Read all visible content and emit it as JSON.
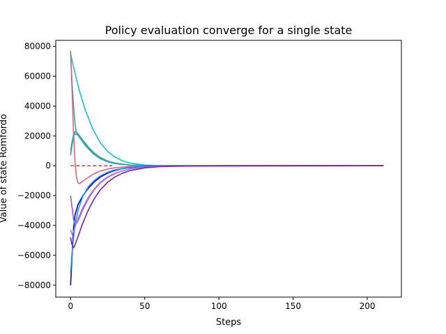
{
  "chart_data": {
    "type": "line",
    "title": "Policy evaluation converge for a single state",
    "xlabel": "Steps",
    "ylabel": "Value of state Romfordo",
    "xlim": [
      -10,
      223
    ],
    "ylim": [
      -88000,
      84000
    ],
    "xticks": [
      0,
      50,
      100,
      150,
      200
    ],
    "yticks": [
      80000,
      60000,
      40000,
      20000,
      0,
      -20000,
      -40000,
      -60000,
      -80000
    ],
    "ytick_labels": [
      "80000",
      "60000",
      "40000",
      "20000",
      "0",
      "−20000",
      "−40000",
      "−60000",
      "−80000"
    ],
    "grid": false,
    "legend": null,
    "reference_line": {
      "y": 0,
      "x": [
        0,
        28
      ],
      "color": "#ff2020",
      "style": "dashed"
    },
    "series": [
      {
        "color": "#17becf",
        "points": [
          [
            0,
            75000
          ],
          [
            3,
            62000
          ],
          [
            6,
            50000
          ],
          [
            10,
            37000
          ],
          [
            15,
            24500
          ],
          [
            20,
            15500
          ],
          [
            25,
            9500
          ],
          [
            30,
            5800
          ],
          [
            35,
            3300
          ],
          [
            40,
            1800
          ],
          [
            50,
            500
          ],
          [
            60,
            150
          ],
          [
            80,
            20
          ],
          [
            120,
            0
          ],
          [
            211,
            0
          ]
        ]
      },
      {
        "color": "#4d9da8",
        "points": [
          [
            0,
            76000
          ],
          [
            1,
            55000
          ],
          [
            2,
            40000
          ],
          [
            3,
            28000
          ],
          [
            4,
            22000
          ],
          [
            6,
            19000
          ],
          [
            10,
            13500
          ],
          [
            15,
            8200
          ],
          [
            20,
            4700
          ],
          [
            25,
            2600
          ],
          [
            30,
            1400
          ],
          [
            40,
            400
          ],
          [
            60,
            30
          ],
          [
            211,
            0
          ]
        ]
      },
      {
        "color": "#2eaab8",
        "points": [
          [
            0,
            10000
          ],
          [
            1,
            16000
          ],
          [
            2,
            21000
          ],
          [
            3,
            23000
          ],
          [
            5,
            21500
          ],
          [
            8,
            17500
          ],
          [
            12,
            12500
          ],
          [
            16,
            8500
          ],
          [
            20,
            5600
          ],
          [
            25,
            3200
          ],
          [
            30,
            1800
          ],
          [
            40,
            500
          ],
          [
            60,
            30
          ],
          [
            211,
            0
          ]
        ]
      },
      {
        "color": "#3aa0a0",
        "points": [
          [
            0,
            7000
          ],
          [
            1,
            14000
          ],
          [
            2,
            19500
          ],
          [
            3,
            21500
          ],
          [
            5,
            20500
          ],
          [
            8,
            16500
          ],
          [
            12,
            11500
          ],
          [
            16,
            7800
          ],
          [
            20,
            5100
          ],
          [
            25,
            2900
          ],
          [
            30,
            1600
          ],
          [
            40,
            450
          ],
          [
            60,
            30
          ],
          [
            211,
            0
          ]
        ]
      },
      {
        "color": "#d4667d",
        "points": [
          [
            0,
            77000
          ],
          [
            1,
            50000
          ],
          [
            2,
            22000
          ],
          [
            3,
            2000
          ],
          [
            4,
            -8000
          ],
          [
            5,
            -11500
          ],
          [
            6,
            -12000
          ],
          [
            8,
            -10500
          ],
          [
            10,
            -9000
          ],
          [
            15,
            -5800
          ],
          [
            20,
            -3600
          ],
          [
            25,
            -2200
          ],
          [
            30,
            -1300
          ],
          [
            40,
            -450
          ],
          [
            60,
            -50
          ],
          [
            211,
            0
          ]
        ]
      },
      {
        "color": "#0000cd",
        "points": [
          [
            0,
            -80000
          ],
          [
            1,
            -60000
          ],
          [
            2,
            -42000
          ],
          [
            3,
            -33000
          ],
          [
            5,
            -26000
          ],
          [
            8,
            -20500
          ],
          [
            12,
            -15000
          ],
          [
            16,
            -10800
          ],
          [
            20,
            -7600
          ],
          [
            25,
            -4900
          ],
          [
            30,
            -3100
          ],
          [
            35,
            -1900
          ],
          [
            40,
            -1200
          ],
          [
            50,
            -420
          ],
          [
            60,
            -150
          ],
          [
            80,
            -20
          ],
          [
            211,
            0
          ]
        ]
      },
      {
        "color": "#1e90ff",
        "points": [
          [
            0,
            -72000
          ],
          [
            1,
            -58000
          ],
          [
            2,
            -48000
          ],
          [
            3,
            -40000
          ],
          [
            5,
            -30000
          ],
          [
            8,
            -21000
          ],
          [
            12,
            -14000
          ],
          [
            16,
            -9800
          ],
          [
            20,
            -6800
          ],
          [
            25,
            -4300
          ],
          [
            30,
            -2700
          ],
          [
            40,
            -1000
          ],
          [
            60,
            -120
          ],
          [
            211,
            0
          ]
        ]
      },
      {
        "color": "#9b59d0",
        "points": [
          [
            0,
            -20000
          ],
          [
            1,
            -28000
          ],
          [
            2,
            -36000
          ],
          [
            3,
            -40000
          ],
          [
            5,
            -37000
          ],
          [
            8,
            -30000
          ],
          [
            12,
            -22000
          ],
          [
            16,
            -16000
          ],
          [
            20,
            -11500
          ],
          [
            25,
            -7800
          ],
          [
            30,
            -5200
          ],
          [
            35,
            -3400
          ],
          [
            40,
            -2200
          ],
          [
            50,
            -900
          ],
          [
            60,
            -350
          ],
          [
            80,
            -60
          ],
          [
            211,
            0
          ]
        ]
      },
      {
        "color": "#b07bd8",
        "points": [
          [
            0,
            -43000
          ],
          [
            1,
            -46000
          ],
          [
            2,
            -44000
          ],
          [
            3,
            -41000
          ],
          [
            5,
            -35500
          ],
          [
            8,
            -28500
          ],
          [
            12,
            -21000
          ],
          [
            16,
            -15500
          ],
          [
            20,
            -11000
          ],
          [
            25,
            -7400
          ],
          [
            30,
            -4900
          ],
          [
            40,
            -2100
          ],
          [
            60,
            -330
          ],
          [
            211,
            0
          ]
        ]
      },
      {
        "color": "#7b1fa2",
        "points": [
          [
            0,
            -48000
          ],
          [
            1,
            -53000
          ],
          [
            2,
            -55000
          ],
          [
            3,
            -53000
          ],
          [
            5,
            -47500
          ],
          [
            8,
            -39000
          ],
          [
            12,
            -29500
          ],
          [
            16,
            -22000
          ],
          [
            20,
            -16200
          ],
          [
            25,
            -11000
          ],
          [
            30,
            -7400
          ],
          [
            35,
            -5000
          ],
          [
            40,
            -3300
          ],
          [
            50,
            -1400
          ],
          [
            60,
            -580
          ],
          [
            80,
            -100
          ],
          [
            120,
            -5
          ],
          [
            211,
            0
          ]
        ]
      }
    ]
  }
}
